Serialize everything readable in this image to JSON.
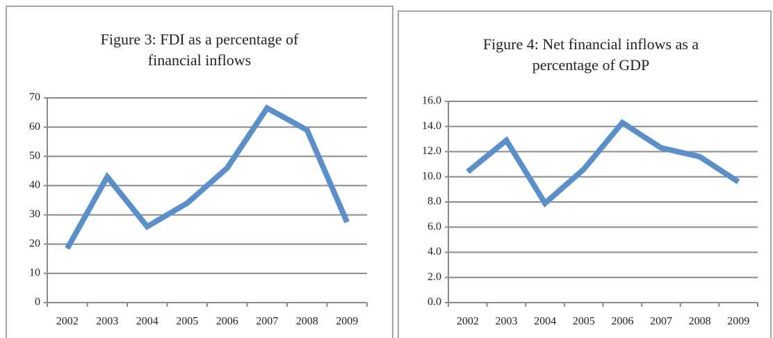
{
  "chart_data": [
    {
      "type": "line",
      "title": "Figure 3: FDI as a percentage of financial inflows",
      "categories": [
        "2002",
        "2003",
        "2004",
        "2005",
        "2006",
        "2007",
        "2008",
        "2009"
      ],
      "values": [
        18.5,
        43,
        26,
        34,
        46,
        66.5,
        59,
        27.5
      ],
      "color": "#5b8fc9",
      "ylim": [
        0,
        70
      ],
      "yticks": [
        0,
        10,
        20,
        30,
        40,
        50,
        60,
        70
      ],
      "grid": true
    },
    {
      "type": "line",
      "title": "Figure 4: Net financial inflows as a percentage of GDP",
      "categories": [
        "2002",
        "2003",
        "2004",
        "2005",
        "2006",
        "2007",
        "2008",
        "2009"
      ],
      "values": [
        10.4,
        12.9,
        7.9,
        10.6,
        14.3,
        12.3,
        11.6,
        9.6
      ],
      "color": "#5b8fc9",
      "ylim": [
        0,
        16
      ],
      "yticks": [
        {
          "value": 0,
          "label": "0.0"
        },
        {
          "value": 2,
          "label": "2.0"
        },
        {
          "value": 4,
          "label": "4.0"
        },
        {
          "value": 6,
          "label": "6.0"
        },
        {
          "value": 8,
          "label": "8.0"
        },
        {
          "value": 10,
          "label": "10.0"
        },
        {
          "value": 12,
          "label": "12.0"
        },
        {
          "value": 14,
          "label": "14.0"
        },
        {
          "value": 16,
          "label": "16.0"
        }
      ],
      "grid": true
    }
  ]
}
